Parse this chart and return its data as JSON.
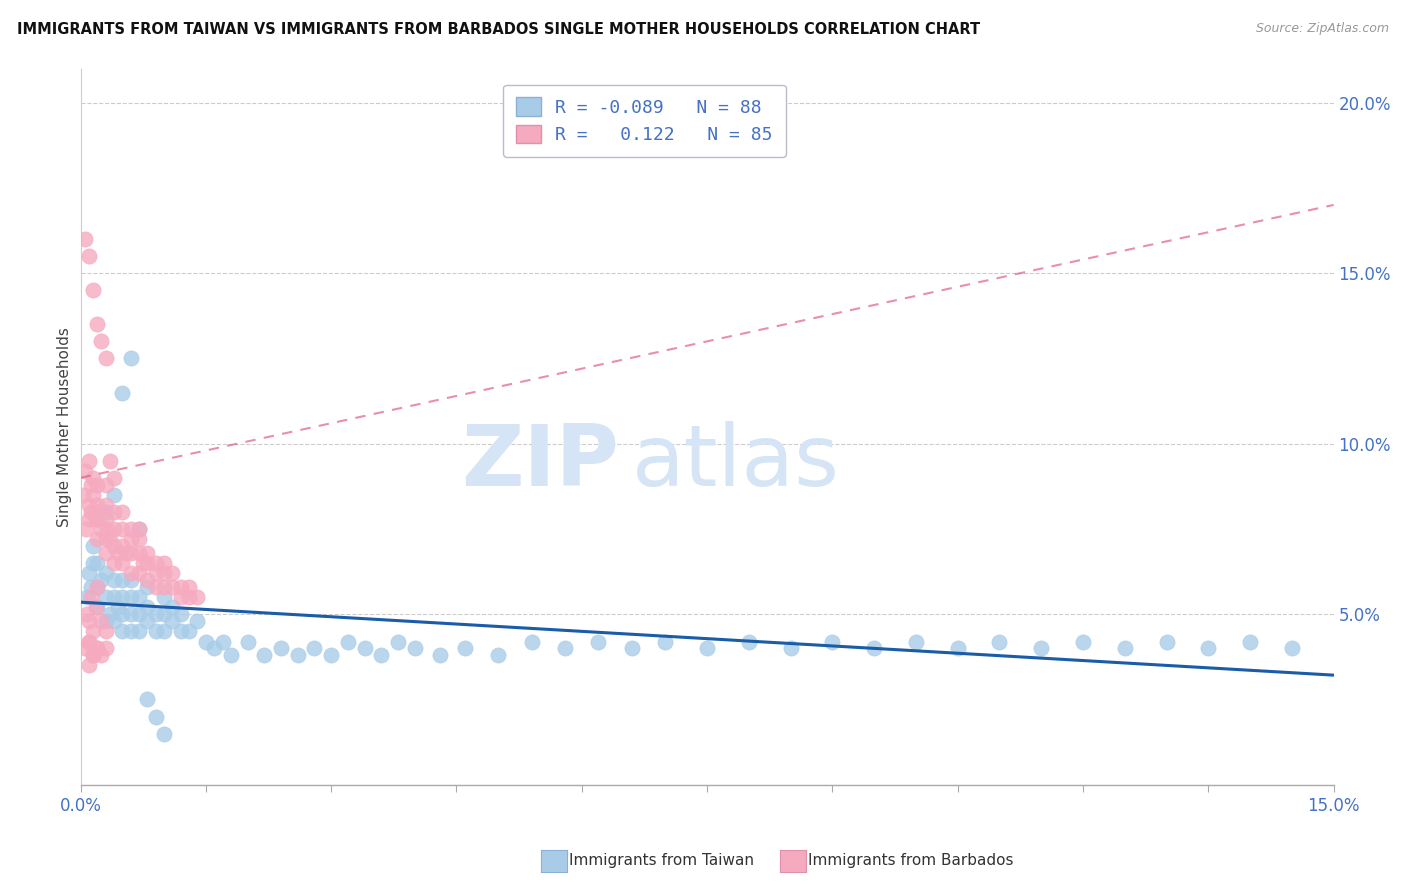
{
  "title": "IMMIGRANTS FROM TAIWAN VS IMMIGRANTS FROM BARBADOS SINGLE MOTHER HOUSEHOLDS CORRELATION CHART",
  "source": "Source: ZipAtlas.com",
  "ylabel": "Single Mother Households",
  "xlim": [
    0.0,
    0.15
  ],
  "ylim": [
    0.0,
    0.21
  ],
  "taiwan_color": "#a8cce8",
  "barbados_color": "#f5aac0",
  "taiwan_line_color": "#1a5ca8",
  "barbados_line_color": "#e06080",
  "taiwan_R": -0.089,
  "taiwan_N": 88,
  "barbados_R": 0.122,
  "barbados_N": 85,
  "watermark_zip": "ZIP",
  "watermark_atlas": "atlas",
  "background_color": "#ffffff",
  "grid_color": "#cccccc",
  "taiwan_x": [
    0.0008,
    0.001,
    0.0012,
    0.0015,
    0.0015,
    0.002,
    0.002,
    0.002,
    0.0025,
    0.003,
    0.003,
    0.003,
    0.0035,
    0.004,
    0.004,
    0.004,
    0.0045,
    0.005,
    0.005,
    0.005,
    0.005,
    0.006,
    0.006,
    0.006,
    0.006,
    0.007,
    0.007,
    0.007,
    0.008,
    0.008,
    0.008,
    0.009,
    0.009,
    0.01,
    0.01,
    0.01,
    0.011,
    0.011,
    0.012,
    0.012,
    0.013,
    0.014,
    0.015,
    0.016,
    0.017,
    0.018,
    0.02,
    0.022,
    0.024,
    0.026,
    0.028,
    0.03,
    0.032,
    0.034,
    0.036,
    0.038,
    0.04,
    0.043,
    0.046,
    0.05,
    0.054,
    0.058,
    0.062,
    0.066,
    0.07,
    0.075,
    0.08,
    0.085,
    0.09,
    0.095,
    0.1,
    0.105,
    0.11,
    0.115,
    0.12,
    0.125,
    0.13,
    0.135,
    0.14,
    0.145,
    0.003,
    0.004,
    0.005,
    0.006,
    0.007,
    0.008,
    0.009,
    0.01
  ],
  "taiwan_y": [
    0.055,
    0.062,
    0.058,
    0.065,
    0.07,
    0.052,
    0.058,
    0.065,
    0.06,
    0.048,
    0.055,
    0.062,
    0.05,
    0.048,
    0.055,
    0.06,
    0.052,
    0.045,
    0.05,
    0.055,
    0.06,
    0.045,
    0.05,
    0.055,
    0.06,
    0.045,
    0.05,
    0.055,
    0.048,
    0.052,
    0.058,
    0.045,
    0.05,
    0.045,
    0.05,
    0.055,
    0.048,
    0.052,
    0.045,
    0.05,
    0.045,
    0.048,
    0.042,
    0.04,
    0.042,
    0.038,
    0.042,
    0.038,
    0.04,
    0.038,
    0.04,
    0.038,
    0.042,
    0.04,
    0.038,
    0.042,
    0.04,
    0.038,
    0.04,
    0.038,
    0.042,
    0.04,
    0.042,
    0.04,
    0.042,
    0.04,
    0.042,
    0.04,
    0.042,
    0.04,
    0.042,
    0.04,
    0.042,
    0.04,
    0.042,
    0.04,
    0.042,
    0.04,
    0.042,
    0.04,
    0.08,
    0.085,
    0.115,
    0.125,
    0.075,
    0.025,
    0.02,
    0.015
  ],
  "barbados_x": [
    0.0003,
    0.0005,
    0.0007,
    0.001,
    0.001,
    0.001,
    0.0012,
    0.0013,
    0.0015,
    0.0015,
    0.0018,
    0.002,
    0.002,
    0.002,
    0.002,
    0.0022,
    0.0025,
    0.003,
    0.003,
    0.003,
    0.003,
    0.003,
    0.0032,
    0.0035,
    0.004,
    0.004,
    0.004,
    0.004,
    0.0045,
    0.005,
    0.005,
    0.005,
    0.005,
    0.0055,
    0.006,
    0.006,
    0.006,
    0.006,
    0.007,
    0.007,
    0.007,
    0.007,
    0.0075,
    0.008,
    0.008,
    0.008,
    0.009,
    0.009,
    0.009,
    0.01,
    0.01,
    0.01,
    0.011,
    0.011,
    0.012,
    0.012,
    0.013,
    0.013,
    0.014,
    0.0005,
    0.001,
    0.0015,
    0.002,
    0.0025,
    0.003,
    0.0035,
    0.004,
    0.0005,
    0.001,
    0.0015,
    0.002,
    0.0025,
    0.003,
    0.001,
    0.0015,
    0.002,
    0.001,
    0.0015,
    0.001,
    0.0008,
    0.0012,
    0.0018,
    0.002,
    0.0025,
    0.003
  ],
  "barbados_y": [
    0.085,
    0.092,
    0.075,
    0.082,
    0.078,
    0.095,
    0.088,
    0.08,
    0.085,
    0.09,
    0.078,
    0.072,
    0.078,
    0.082,
    0.088,
    0.08,
    0.075,
    0.068,
    0.072,
    0.078,
    0.082,
    0.088,
    0.075,
    0.072,
    0.065,
    0.07,
    0.075,
    0.08,
    0.068,
    0.065,
    0.07,
    0.075,
    0.08,
    0.068,
    0.062,
    0.068,
    0.072,
    0.075,
    0.062,
    0.068,
    0.072,
    0.075,
    0.065,
    0.06,
    0.065,
    0.068,
    0.058,
    0.062,
    0.065,
    0.058,
    0.062,
    0.065,
    0.058,
    0.062,
    0.055,
    0.058,
    0.055,
    0.058,
    0.055,
    0.16,
    0.155,
    0.145,
    0.135,
    0.13,
    0.125,
    0.095,
    0.09,
    0.04,
    0.042,
    0.038,
    0.04,
    0.038,
    0.04,
    0.035,
    0.038,
    0.04,
    0.048,
    0.045,
    0.042,
    0.05,
    0.055,
    0.052,
    0.058,
    0.048,
    0.045
  ]
}
